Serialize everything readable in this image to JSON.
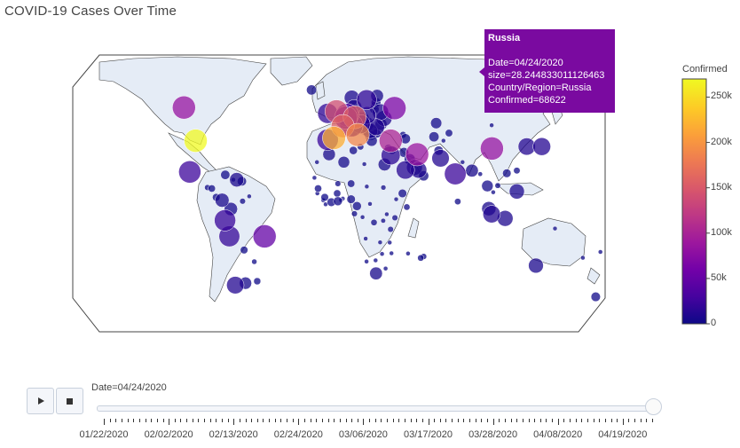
{
  "chart_data": {
    "type": "scatter",
    "title": "COVID-19 Cases Over Time",
    "colorbar": {
      "title": "Confirmed",
      "range": [
        0,
        270000
      ],
      "ticks": [
        "250k",
        "200k",
        "150k",
        "100k",
        "50k",
        "0"
      ],
      "tick_values": [
        250000,
        200000,
        150000,
        100000,
        50000,
        0
      ],
      "colorscale": [
        "#0d0887",
        "#46039f",
        "#7201a8",
        "#9c179e",
        "#bd3786",
        "#d8576b",
        "#ed7953",
        "#fb9f3a",
        "#fdca26",
        "#f0f921"
      ]
    },
    "hover": {
      "title": "Russia",
      "lines": [
        "Date=04/24/2020",
        "size=28.244833011126463",
        "Country/Region=Russia",
        "Confirmed=68622"
      ]
    },
    "points": [
      {
        "lon": -98,
        "lat": 39,
        "confirmed": 270000
      },
      {
        "lon": -106,
        "lat": 56,
        "confirmed": 85000
      },
      {
        "lon": -102,
        "lat": 23,
        "confirmed": 25000
      },
      {
        "lon": -3.7,
        "lat": 40.4,
        "confirmed": 220000
      },
      {
        "lon": 12.5,
        "lat": 42,
        "confirmed": 192000
      },
      {
        "lon": 2.3,
        "lat": 46.5,
        "confirmed": 160000
      },
      {
        "lon": 10.4,
        "lat": 51,
        "confirmed": 156000
      },
      {
        "lon": -2,
        "lat": 54,
        "confirmed": 143000
      },
      {
        "lon": 35,
        "lat": 39,
        "confirmed": 104000
      },
      {
        "lon": 53,
        "lat": 32,
        "confirmed": 88000
      },
      {
        "lon": 37.6,
        "lat": 55.7,
        "confirmed": 68622
      },
      {
        "lon": 104,
        "lat": 35,
        "confirmed": 84000
      },
      {
        "lon": -51,
        "lat": -10,
        "confirmed": 50000
      },
      {
        "lon": 4.5,
        "lat": 50.8,
        "confirmed": 44000
      },
      {
        "lon": 5.3,
        "lat": 52.1,
        "confirmed": 36000
      },
      {
        "lon": 8.2,
        "lat": 46.8,
        "confirmed": 28000
      },
      {
        "lon": -8,
        "lat": 39.5,
        "confirmed": 22000
      },
      {
        "lon": -8,
        "lat": 53,
        "confirmed": 18000
      },
      {
        "lon": 18.6,
        "lat": 60,
        "confirmed": 17000
      },
      {
        "lon": 14.5,
        "lat": 47.5,
        "confirmed": 15000
      },
      {
        "lon": 79,
        "lat": 22,
        "confirmed": 23000
      },
      {
        "lon": 69,
        "lat": 30,
        "confirmed": 11000
      },
      {
        "lon": 45,
        "lat": 24,
        "confirmed": 13000
      },
      {
        "lon": 54,
        "lat": 24,
        "confirmed": 9000
      },
      {
        "lon": 51.2,
        "lat": 25.3,
        "confirmed": 8000
      },
      {
        "lon": 30.5,
        "lat": 50.4,
        "confirmed": 8000
      },
      {
        "lon": 19,
        "lat": 52,
        "confirmed": 11000
      },
      {
        "lon": 25,
        "lat": 46,
        "confirmed": 10000
      },
      {
        "lon": 15.5,
        "lat": 49.8,
        "confirmed": 7000
      },
      {
        "lon": 10,
        "lat": 56,
        "confirmed": 8000
      },
      {
        "lon": 8.5,
        "lat": 61,
        "confirmed": 7000
      },
      {
        "lon": 25.7,
        "lat": 62,
        "confirmed": 4000
      },
      {
        "lon": 28,
        "lat": 53.7,
        "confirmed": 9000
      },
      {
        "lon": 35,
        "lat": 31.5,
        "confirmed": 15000
      },
      {
        "lon": 30.8,
        "lat": 26.8,
        "confirmed": 4000
      },
      {
        "lon": 3,
        "lat": 28,
        "confirmed": 3000
      },
      {
        "lon": -7,
        "lat": 32,
        "confirmed": 3700
      },
      {
        "lon": 9.5,
        "lat": 34,
        "confirmed": 900
      },
      {
        "lon": 17,
        "lat": 27,
        "confirmed": 60
      },
      {
        "lon": 30,
        "lat": 15,
        "confirmed": 200
      },
      {
        "lon": -14.5,
        "lat": 14.5,
        "confirmed": 600
      },
      {
        "lon": -1.5,
        "lat": 12,
        "confirmed": 600
      },
      {
        "lon": -5.5,
        "lat": 7.5,
        "confirmed": 1000
      },
      {
        "lon": -1,
        "lat": 8,
        "confirmed": 1200
      },
      {
        "lon": 8,
        "lat": 9,
        "confirmed": 1000
      },
      {
        "lon": 12,
        "lat": 5.5,
        "confirmed": 1200
      },
      {
        "lon": 38.7,
        "lat": 9,
        "confirmed": 100
      },
      {
        "lon": 37.9,
        "lat": -0.5,
        "confirmed": 300
      },
      {
        "lon": 34.9,
        "lat": -6.4,
        "confirmed": 300
      },
      {
        "lon": 23.6,
        "lat": -2.9,
        "confirmed": 400
      },
      {
        "lon": 25,
        "lat": -29,
        "confirmed": 4000
      },
      {
        "lon": 46.8,
        "lat": -18.8,
        "confirmed": 120
      },
      {
        "lon": 113,
        "lat": -0.8,
        "confirmed": 8000
      },
      {
        "lon": 101.9,
        "lat": 4.2,
        "confirmed": 5600
      },
      {
        "lon": 103.8,
        "lat": 1.35,
        "confirmed": 11000
      },
      {
        "lon": 121,
        "lat": 13,
        "confirmed": 7000
      },
      {
        "lon": 100.9,
        "lat": 15.8,
        "confirmed": 2800
      },
      {
        "lon": 108,
        "lat": 16,
        "confirmed": 270
      },
      {
        "lon": 138,
        "lat": 36,
        "confirmed": 12000
      },
      {
        "lon": 127.8,
        "lat": 36,
        "confirmed": 10700
      },
      {
        "lon": 90.4,
        "lat": 23.7,
        "confirmed": 4000
      },
      {
        "lon": 84,
        "lat": 28,
        "confirmed": 50
      },
      {
        "lon": 80.7,
        "lat": 7.8,
        "confirmed": 400
      },
      {
        "lon": 66,
        "lat": 48,
        "confirmed": 2500
      },
      {
        "lon": 64.5,
        "lat": 41,
        "confirmed": 1800
      },
      {
        "lon": 134,
        "lat": -25,
        "confirmed": 6700
      },
      {
        "lon": 174.8,
        "lat": -41,
        "confirmed": 1450
      },
      {
        "lon": -75,
        "lat": -10,
        "confirmed": 20000
      },
      {
        "lon": -78,
        "lat": -1.8,
        "confirmed": 22000
      },
      {
        "lon": -74,
        "lat": 4,
        "confirmed": 4500
      },
      {
        "lon": -66,
        "lat": 8,
        "confirmed": 300
      },
      {
        "lon": -71,
        "lat": -35,
        "confirmed": 11000
      },
      {
        "lon": -64,
        "lat": -34,
        "confirmed": 3500
      },
      {
        "lon": -56,
        "lat": -33,
        "confirmed": 550
      },
      {
        "lon": -58,
        "lat": -23,
        "confirmed": 220
      },
      {
        "lon": -65,
        "lat": -17,
        "confirmed": 700
      },
      {
        "lon": -80,
        "lat": 8.5,
        "confirmed": 5300
      },
      {
        "lon": -84,
        "lat": 10,
        "confirmed": 690
      },
      {
        "lon": -90,
        "lat": 15,
        "confirmed": 300
      },
      {
        "lon": -87,
        "lat": 14.5,
        "confirmed": 600
      },
      {
        "lon": -70,
        "lat": 19,
        "confirmed": 5900
      },
      {
        "lon": -77.8,
        "lat": 21.5,
        "confirmed": 1300
      },
      {
        "lon": -66.5,
        "lat": 18.2,
        "confirmed": 1300
      },
      {
        "lon": -61.5,
        "lat": 10.5,
        "confirmed": 115
      },
      {
        "lon": -72.3,
        "lat": 19,
        "confirmed": 70
      },
      {
        "lon": 45,
        "lat": 40,
        "confirmed": 1800
      },
      {
        "lon": 43.4,
        "lat": 42,
        "confirmed": 450
      },
      {
        "lon": 44,
        "lat": 33,
        "confirmed": 1600
      },
      {
        "lon": 36,
        "lat": 34,
        "confirmed": 700
      },
      {
        "lon": 57.5,
        "lat": 21,
        "confirmed": 1800
      },
      {
        "lon": 48,
        "lat": 29.5,
        "confirmed": 2600
      },
      {
        "lon": 67.7,
        "lat": 33.9,
        "confirmed": 1300
      },
      {
        "lon": 74.7,
        "lat": 42.9,
        "confirmed": 650
      },
      {
        "lon": 71,
        "lat": 39,
        "confirmed": 10
      },
      {
        "lon": 103.8,
        "lat": 46.9,
        "confirmed": 37
      },
      {
        "lon": 121,
        "lat": 23.7,
        "confirmed": 428
      },
      {
        "lon": 114.2,
        "lat": 22.3,
        "confirmed": 1036
      },
      {
        "lon": 96,
        "lat": 21.9,
        "confirmed": 140
      },
      {
        "lon": 104.9,
        "lat": 12.6,
        "confirmed": 122
      },
      {
        "lon": 147,
        "lat": -6,
        "confirmed": 8
      },
      {
        "lon": 178,
        "lat": -18,
        "confirmed": 18
      },
      {
        "lon": 166,
        "lat": -21,
        "confirmed": 18
      },
      {
        "lon": 9.5,
        "lat": 44,
        "confirmed": 2000
      },
      {
        "lon": 21,
        "lat": 44,
        "confirmed": 7000
      },
      {
        "lon": 17.7,
        "lat": 44,
        "confirmed": 1400
      },
      {
        "lon": 22,
        "lat": 39,
        "confirmed": 2500
      },
      {
        "lon": 25.5,
        "lat": 42.7,
        "confirmed": 1200
      },
      {
        "lon": 19.5,
        "lat": 47,
        "confirmed": 2400
      },
      {
        "lon": 24,
        "lat": 56.9,
        "confirmed": 800
      },
      {
        "lon": 23.9,
        "lat": 55.2,
        "confirmed": 1400
      },
      {
        "lon": 25,
        "lat": 58.6,
        "confirmed": 1600
      },
      {
        "lon": -19,
        "lat": 65,
        "confirmed": 1800
      },
      {
        "lon": 19.7,
        "lat": 48.7,
        "confirmed": 1300
      },
      {
        "lon": 15,
        "lat": 46,
        "confirmed": 1400
      },
      {
        "lon": 15.2,
        "lat": 45.1,
        "confirmed": 2000
      },
      {
        "lon": 33.4,
        "lat": 35.1,
        "confirmed": 800
      },
      {
        "lon": 14.4,
        "lat": 35.9,
        "confirmed": 440
      },
      {
        "lon": 28.4,
        "lat": 47.4,
        "confirmed": 3300
      },
      {
        "lon": 20,
        "lat": 41.2,
        "confirmed": 700
      },
      {
        "lon": 21.7,
        "lat": 41.6,
        "confirmed": 1300
      },
      {
        "lon": -15.3,
        "lat": 28,
        "confirmed": 100
      },
      {
        "lon": -17,
        "lat": 20,
        "confirmed": 10
      },
      {
        "lon": -11,
        "lat": 8.5,
        "confirmed": 100
      },
      {
        "lon": -9.4,
        "lat": 6.4,
        "confirmed": 120
      },
      {
        "lon": -10,
        "lat": 10,
        "confirmed": 700
      },
      {
        "lon": -15,
        "lat": 12,
        "confirmed": 70
      },
      {
        "lon": -1,
        "lat": 17,
        "confirmed": 300
      },
      {
        "lon": 8,
        "lat": 17,
        "confirmed": 650
      },
      {
        "lon": 18.7,
        "lat": 15.5,
        "confirmed": 40
      },
      {
        "lon": 2.3,
        "lat": 9.3,
        "confirmed": 60
      },
      {
        "lon": 1.1,
        "lat": 8.6,
        "confirmed": 90
      },
      {
        "lon": 10.3,
        "lat": 1.6,
        "confirmed": 300
      },
      {
        "lon": 15.8,
        "lat": -0.2,
        "confirmed": 100
      },
      {
        "lon": 20.9,
        "lat": 6.6,
        "confirmed": 70
      },
      {
        "lon": 32.3,
        "lat": 1.3,
        "confirmed": 70
      },
      {
        "lon": 29.9,
        "lat": -2,
        "confirmed": 150
      },
      {
        "lon": 43,
        "lat": 12,
        "confirmed": 1000
      },
      {
        "lon": 46,
        "lat": 5,
        "confirmed": 400
      },
      {
        "lon": 17.9,
        "lat": -11.2,
        "confirmed": 25
      },
      {
        "lon": 27.8,
        "lat": -13.1,
        "confirmed": 80
      },
      {
        "lon": 34.3,
        "lat": -13.2,
        "confirmed": 30
      },
      {
        "lon": 35.5,
        "lat": -18.7,
        "confirmed": 70
      },
      {
        "lon": 29.1,
        "lat": -19,
        "confirmed": 30
      },
      {
        "lon": 24.7,
        "lat": -22.3,
        "confirmed": 20
      },
      {
        "lon": 18.5,
        "lat": -22.9,
        "confirmed": 16
      },
      {
        "lon": 31.5,
        "lat": -26.5,
        "confirmed": 60
      },
      {
        "lon": 57.5,
        "lat": -20.3,
        "confirmed": 330
      },
      {
        "lon": 55.5,
        "lat": -21.1,
        "confirmed": 400
      }
    ]
  },
  "controls": {
    "slider_label": "Date=04/24/2020",
    "slider_value": 1.0,
    "ticks": [
      "01/22/2020",
      "02/02/2020",
      "02/13/2020",
      "02/24/2020",
      "03/06/2020",
      "03/17/2020",
      "03/28/2020",
      "04/08/2020",
      "04/19/2020"
    ]
  }
}
